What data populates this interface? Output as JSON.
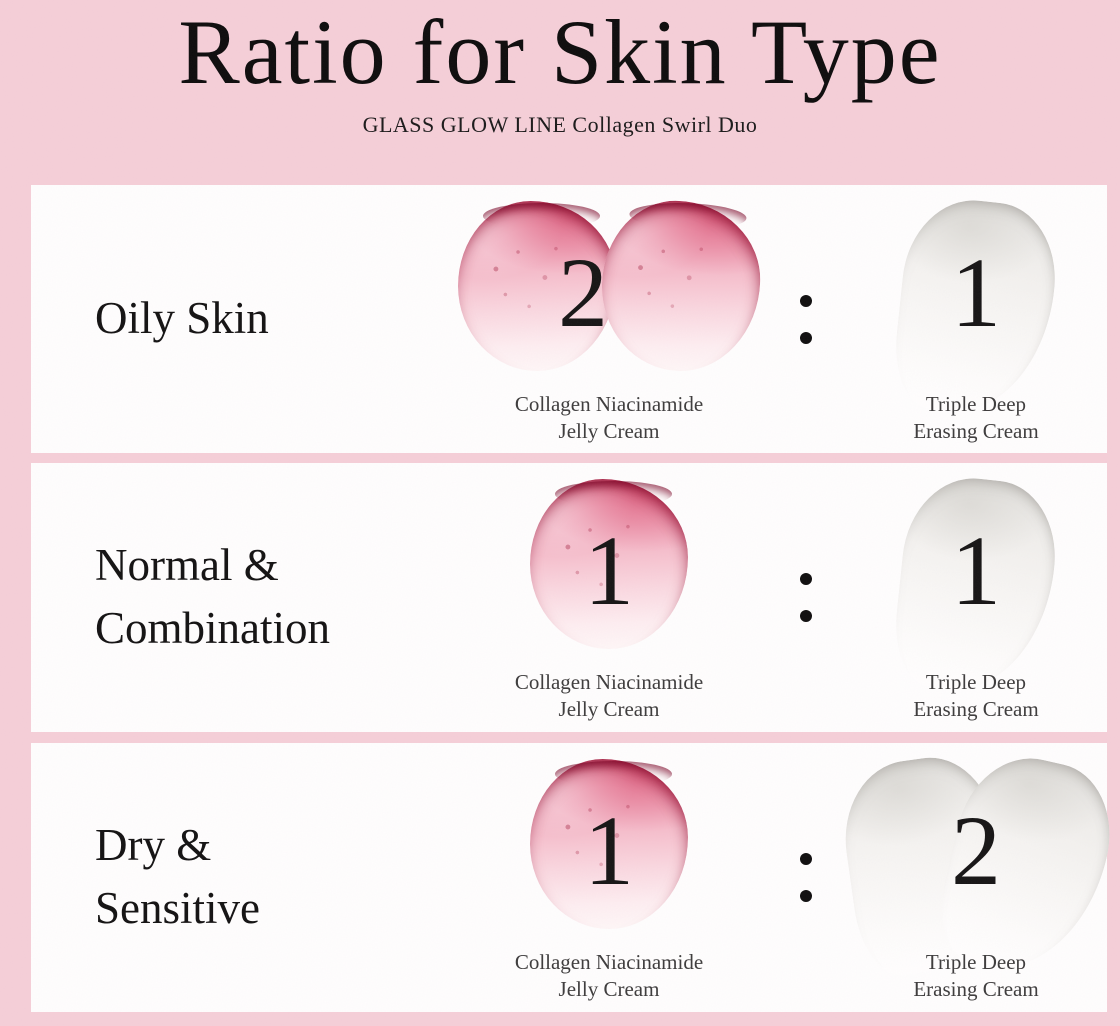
{
  "header": {
    "title": "Ratio for Skin Type",
    "subtitle": "GLASS GLOW LINE Collagen Swirl Duo"
  },
  "ratio_separator": ":",
  "products": {
    "jelly_cream_full_name": "Collagen Niacinamide Jelly Cream",
    "erasing_cream_full_name": "Triple Deep Erasing Cream"
  },
  "rows": [
    {
      "skin_type_line1": "Oily Skin",
      "skin_type_line2": "",
      "jelly": {
        "amount": "2",
        "swatch_count": 2,
        "name_line1": "Collagen Niacinamide",
        "name_line2": "Jelly Cream"
      },
      "cream": {
        "amount": "1",
        "swatch_count": 1,
        "name_line1": "Triple Deep",
        "name_line2": "Erasing Cream"
      }
    },
    {
      "skin_type_line1": "Normal &",
      "skin_type_line2": "Combination",
      "jelly": {
        "amount": "1",
        "swatch_count": 1,
        "name_line1": "Collagen Niacinamide",
        "name_line2": "Jelly Cream"
      },
      "cream": {
        "amount": "1",
        "swatch_count": 1,
        "name_line1": "Triple Deep",
        "name_line2": "Erasing Cream"
      }
    },
    {
      "skin_type_line1": "Dry &",
      "skin_type_line2": "Sensitive",
      "jelly": {
        "amount": "1",
        "swatch_count": 1,
        "name_line1": "Collagen Niacinamide",
        "name_line2": "Jelly Cream"
      },
      "cream": {
        "amount": "2",
        "swatch_count": 2,
        "name_line1": "Triple Deep",
        "name_line2": "Erasing Cream"
      }
    }
  ],
  "colors": {
    "background_pink": "#f4cfd8",
    "card_white": "#fefefe",
    "jelly_pink": "#efa2b7",
    "jelly_rim_crimson": "#8d092b",
    "cream_gray": "#ececea",
    "text_black": "#121212",
    "caption_gray": "#3c3c3c"
  }
}
